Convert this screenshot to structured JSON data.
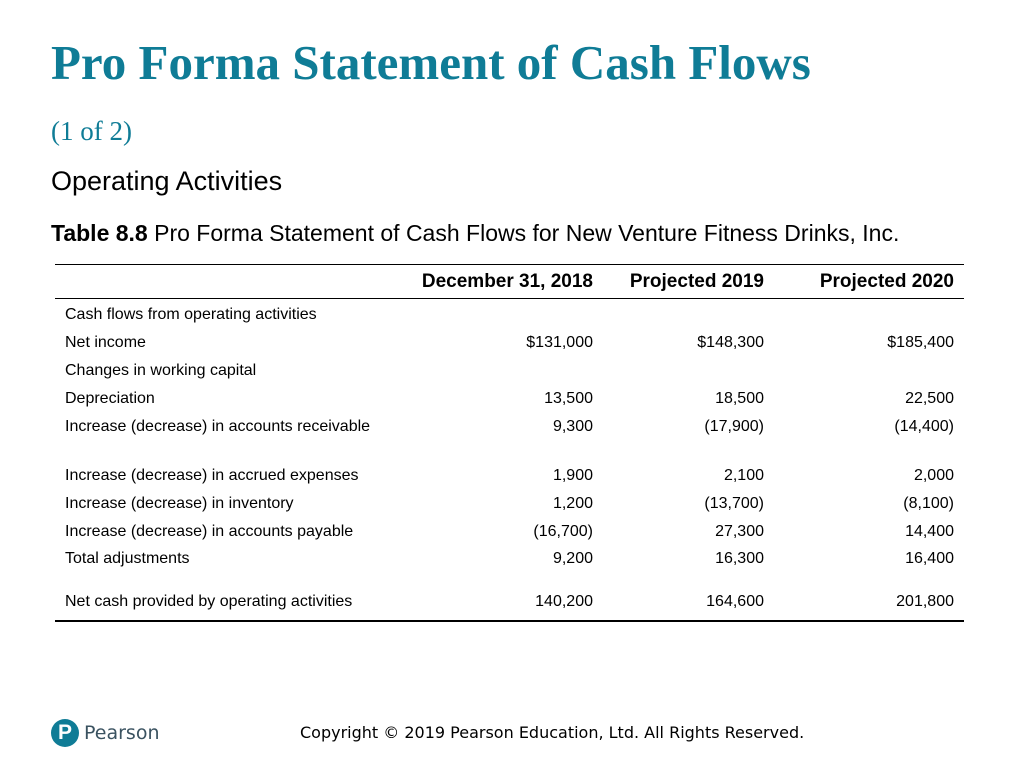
{
  "slide": {
    "title": "Pro Forma Statement of Cash Flows",
    "title_suffix": "(1 of 2)",
    "subtitle": "Operating Activities",
    "caption_number": "Table 8.8",
    "caption_text": "Pro Forma Statement of Cash Flows for New Venture Fitness Drinks, Inc."
  },
  "table": {
    "headers": [
      "",
      "December 31, 2018",
      "Projected 2019",
      "Projected 2020"
    ],
    "rows": [
      {
        "label": "Cash flows from operating activities",
        "values": [
          "",
          "",
          ""
        ]
      },
      {
        "label": "Net income",
        "values": [
          "$131,000",
          "$148,300",
          "$185,400"
        ]
      },
      {
        "label": "Changes in working capital",
        "values": [
          "",
          "",
          ""
        ]
      },
      {
        "label": "Depreciation",
        "values": [
          "13,500",
          "18,500",
          "22,500"
        ]
      },
      {
        "label": "Increase (decrease) in accounts receivable",
        "values": [
          "9,300",
          "(17,900)",
          "(14,400)"
        ]
      },
      {
        "label": "Increase (decrease) in accrued expenses",
        "values": [
          "1,900",
          "2,100",
          "2,000"
        ]
      },
      {
        "label": "Increase (decrease) in inventory",
        "values": [
          "1,200",
          "(13,700)",
          "(8,100)"
        ]
      },
      {
        "label": "Increase (decrease) in accounts payable",
        "values": [
          "(16,700)",
          "27,300",
          "14,400"
        ]
      },
      {
        "label": "Total adjustments",
        "values": [
          "9,200",
          "16,300",
          "16,400"
        ]
      },
      {
        "label": "Net cash provided by operating activities",
        "values": [
          "140,200",
          "164,600",
          "201,800"
        ]
      }
    ]
  },
  "footer": {
    "logo_letter": "P",
    "logo_text": "Pearson",
    "copyright": "Copyright © 2019 Pearson Education, Ltd. All Rights Reserved."
  },
  "colors": {
    "title": "#0f7c96",
    "logo": "#0f7c96"
  }
}
